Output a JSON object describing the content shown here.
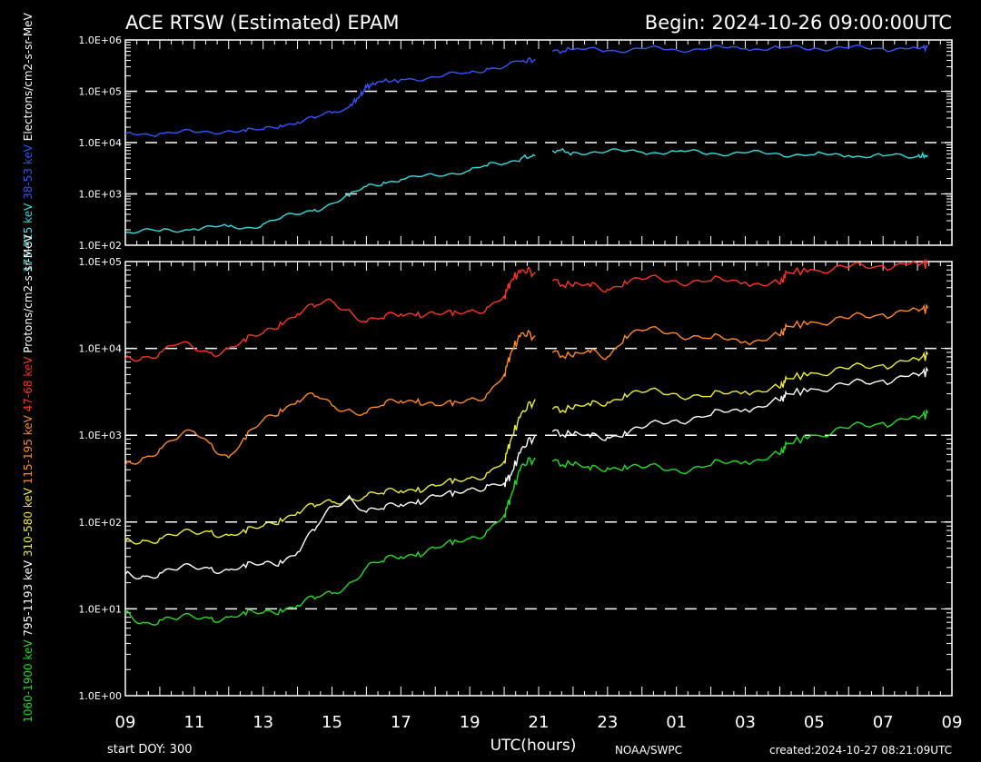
{
  "header": {
    "title": "ACE RTSW (Estimated) EPAM",
    "begin": "Begin: 2024-10-26 09:00:00UTC"
  },
  "footer": {
    "start_doy": "start DOY:  300",
    "xlabel": "UTC(hours)",
    "source": "NOAA/SWPC",
    "created": "created:2024-10-27 08:21:09UTC"
  },
  "colors": {
    "e38": "#3355ff",
    "e175": "#33dddd",
    "p47": "#ff3322",
    "p115": "#ff8822",
    "p310": "#eeee33",
    "p795": "#ffffff",
    "p1060": "#22dd22"
  },
  "chart_data": [
    {
      "type": "line",
      "name": "electrons",
      "ylabel_parts": [
        {
          "text": "175-315 keV",
          "color": "#33dddd"
        },
        {
          "text": "38-53 keV",
          "color": "#3355ff"
        }
      ],
      "ylabel_tail": "Electrons/cm2-s-sr-MeV",
      "yscale": "log",
      "ylim": [
        100,
        1000000
      ],
      "y_ticks": [
        "1.0E+02",
        "1.0E+03",
        "1.0E+04",
        "1.0E+05",
        "1.0E+06"
      ],
      "xlim": [
        9,
        33
      ],
      "x_ticks": [
        "09",
        "11",
        "13",
        "15",
        "17",
        "19",
        "21",
        "23",
        "01",
        "03",
        "05",
        "07",
        "09"
      ],
      "grid": "dashed horizontal at decades",
      "gap": [
        20.95,
        21.35
      ],
      "series": [
        {
          "label": "38-53 keV",
          "color_key": "e38",
          "x": [
            9,
            10,
            11,
            12,
            12.5,
            13,
            13.5,
            14,
            14.5,
            15,
            15.5,
            15.8,
            16,
            16.3,
            17,
            18,
            19,
            19.5,
            20,
            20.5,
            20.9,
            21.4,
            22,
            23,
            24,
            25,
            26,
            27,
            28,
            29,
            30,
            31,
            32,
            32.3
          ],
          "y": [
            15000,
            15000,
            16000,
            17000,
            16500,
            18000,
            22000,
            25000,
            30000,
            38000,
            50000,
            80000,
            120000,
            150000,
            170000,
            190000,
            230000,
            280000,
            300000,
            380000,
            420000,
            600000,
            650000,
            620000,
            680000,
            640000,
            700000,
            680000,
            700000,
            690000,
            700000,
            680000,
            700000,
            720000
          ]
        },
        {
          "label": "175-315 keV",
          "color_key": "e175",
          "x": [
            9,
            10,
            11,
            12,
            12.5,
            13,
            13.5,
            14,
            14.5,
            15,
            15.5,
            16,
            16.5,
            17,
            18,
            19,
            19.5,
            20,
            20.5,
            20.9,
            21.4,
            22,
            23,
            24,
            25,
            26,
            27,
            28,
            29,
            30,
            31,
            32,
            32.3
          ],
          "y": [
            180,
            190,
            210,
            230,
            220,
            260,
            330,
            400,
            500,
            650,
            900,
            1400,
            1700,
            1900,
            2300,
            2900,
            3500,
            3900,
            5000,
            5500,
            7000,
            6500,
            6800,
            6500,
            6700,
            6200,
            6300,
            6000,
            5800,
            5600,
            5500,
            5400,
            5600
          ]
        }
      ]
    },
    {
      "type": "line",
      "name": "protons",
      "ylabel_parts": [
        {
          "text": "1060-1900 keV",
          "color": "#22dd22"
        },
        {
          "text": "795-1193 keV",
          "color": "#ffffff"
        },
        {
          "text": "310-580 keV",
          "color": "#eeee33"
        },
        {
          "text": "115-195 keV",
          "color": "#ff8822"
        },
        {
          "text": "47-68 keV",
          "color": "#ff3322"
        }
      ],
      "ylabel_tail": "Protons/cm2-s-sr-MeV",
      "yscale": "log",
      "ylim": [
        1,
        100000
      ],
      "y_ticks": [
        "1.0E+00",
        "1.0E+01",
        "1.0E+02",
        "1.0E+03",
        "1.0E+04",
        "1.0E+05"
      ],
      "xlim": [
        9,
        33
      ],
      "x_ticks": [
        "09",
        "11",
        "13",
        "15",
        "17",
        "19",
        "21",
        "23",
        "01",
        "03",
        "05",
        "07",
        "09"
      ],
      "grid": "dashed horizontal at decades",
      "gaps": [
        [
          20.95,
          21.35
        ],
        [
          27.95,
          28.15
        ]
      ],
      "series": [
        {
          "label": "47-68 keV",
          "color_key": "p47",
          "x": [
            9,
            9.5,
            10,
            10.5,
            11,
            11.5,
            12,
            12.5,
            13,
            13.5,
            14,
            14.5,
            15,
            15.5,
            16,
            16.5,
            17,
            17.5,
            18,
            18.5,
            19,
            19.5,
            20,
            20.2,
            20.5,
            20.9,
            21.4,
            22,
            22.5,
            23,
            23.5,
            24,
            25,
            26,
            27,
            28,
            28.2,
            29,
            30,
            31,
            32,
            32.3
          ],
          "y": [
            7500,
            8000,
            9000,
            11000,
            10000,
            9000,
            10000,
            12000,
            15000,
            20000,
            25000,
            30000,
            35000,
            28000,
            20000,
            22000,
            25000,
            26000,
            25000,
            24000,
            27000,
            30000,
            40000,
            60000,
            80000,
            75000,
            60000,
            52000,
            52000,
            48000,
            60000,
            62000,
            60000,
            60000,
            58000,
            55000,
            75000,
            80000,
            85000,
            90000,
            95000,
            95000
          ]
        },
        {
          "label": "115-195 keV",
          "color_key": "p115",
          "x": [
            9,
            9.5,
            10,
            10.5,
            11,
            11.5,
            12,
            12.5,
            13,
            13.5,
            14,
            14.5,
            15,
            15.5,
            16,
            16.5,
            17,
            17.5,
            18,
            18.5,
            19,
            19.5,
            20,
            20.2,
            20.5,
            20.9,
            21.4,
            22,
            22.5,
            23,
            23.5,
            24,
            25,
            26,
            27,
            28,
            28.2,
            29,
            30,
            31,
            32,
            32.3
          ],
          "y": [
            450,
            550,
            700,
            900,
            1100,
            800,
            550,
            900,
            1500,
            2000,
            2500,
            2800,
            2200,
            2000,
            1800,
            2200,
            2500,
            2600,
            2200,
            2200,
            2600,
            3000,
            5000,
            9000,
            15000,
            14000,
            9000,
            8000,
            9000,
            8000,
            14000,
            16000,
            15000,
            13000,
            12000,
            14000,
            18000,
            20000,
            22000,
            25000,
            28000,
            29000
          ]
        },
        {
          "label": "310-580 keV",
          "color_key": "p310",
          "x": [
            9,
            9.5,
            10,
            10.5,
            11,
            11.5,
            12,
            12.5,
            13,
            13.5,
            14,
            14.5,
            15,
            15.5,
            16,
            16.5,
            17,
            17.5,
            18,
            18.5,
            19,
            19.5,
            20,
            20.2,
            20.5,
            20.9,
            21.4,
            22,
            22.5,
            23,
            23.5,
            24,
            25,
            26,
            27,
            28,
            28.2,
            29,
            30,
            31,
            32,
            32.3
          ],
          "y": [
            60,
            62,
            65,
            70,
            75,
            80,
            70,
            75,
            90,
            110,
            130,
            150,
            170,
            190,
            200,
            210,
            230,
            250,
            260,
            280,
            320,
            370,
            500,
            900,
            1800,
            2600,
            2000,
            2000,
            2200,
            2400,
            3000,
            3100,
            3000,
            2800,
            3200,
            3500,
            4500,
            5200,
            5800,
            6500,
            7500,
            8500
          ]
        },
        {
          "label": "795-1193 keV",
          "color_key": "p795",
          "x": [
            9,
            9.5,
            10,
            10.5,
            11,
            11.5,
            12,
            12.5,
            13,
            13.5,
            14,
            14.5,
            15,
            15.5,
            16,
            16.5,
            17,
            17.5,
            18,
            18.5,
            19,
            19.5,
            20,
            20.2,
            20.5,
            20.9,
            21.4,
            22,
            22.5,
            23,
            23.5,
            24,
            25,
            26,
            27,
            28,
            28.2,
            29,
            30,
            31,
            32,
            32.3
          ],
          "y": [
            25,
            24,
            26,
            28,
            30,
            30,
            28,
            30,
            33,
            36,
            45,
            80,
            150,
            200,
            130,
            140,
            160,
            180,
            200,
            200,
            240,
            270,
            280,
            350,
            700,
            1000,
            1100,
            1000,
            950,
            950,
            1100,
            1200,
            1500,
            1700,
            2000,
            2500,
            3000,
            3400,
            3800,
            4300,
            5000,
            5500
          ]
        },
        {
          "label": "1060-1900 keV",
          "color_key": "p1060",
          "x": [
            9,
            9.5,
            10,
            10.5,
            11,
            11.5,
            12,
            12.5,
            13,
            13.5,
            14,
            14.5,
            15,
            15.5,
            16,
            16.5,
            17,
            17.5,
            18,
            18.5,
            19,
            19.5,
            20,
            20.2,
            20.5,
            20.9,
            21.4,
            22,
            22.5,
            23,
            23.5,
            24,
            25,
            26,
            27,
            28,
            28.2,
            29,
            30,
            31,
            32,
            32.3
          ],
          "y": [
            9,
            7,
            7.5,
            7.5,
            8,
            8,
            8,
            8.5,
            9,
            10,
            11,
            13,
            15,
            20,
            30,
            35,
            40,
            45,
            50,
            55,
            65,
            80,
            120,
            200,
            450,
            550,
            500,
            450,
            400,
            420,
            450,
            420,
            400,
            450,
            500,
            600,
            800,
            1000,
            1200,
            1400,
            1600,
            1800
          ]
        }
      ]
    }
  ]
}
